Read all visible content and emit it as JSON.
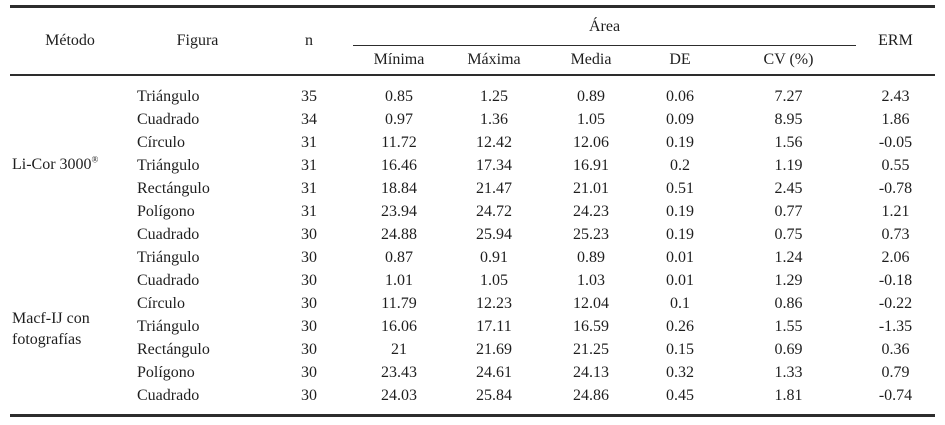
{
  "table": {
    "headers": {
      "metodo": "Método",
      "figura": "Figura",
      "n": "n",
      "area": "Área",
      "area_sub": [
        "Mínima",
        "Máxima",
        "Media",
        "DE",
        "CV (%)"
      ],
      "erm": "ERM"
    },
    "groups": [
      {
        "metodo": "Li-Cor 3000",
        "metodo_sup": "®",
        "rows": [
          {
            "figura": "Triángulo",
            "n": "35",
            "minima": "0.85",
            "maxima": "1.25",
            "media": "0.89",
            "de": "0.06",
            "cv": "7.27",
            "erm": "2.43"
          },
          {
            "figura": "Cuadrado",
            "n": "34",
            "minima": "0.97",
            "maxima": "1.36",
            "media": "1.05",
            "de": "0.09",
            "cv": "8.95",
            "erm": "1.86"
          },
          {
            "figura": "Círculo",
            "n": "31",
            "minima": "11.72",
            "maxima": "12.42",
            "media": "12.06",
            "de": "0.19",
            "cv": "1.56",
            "erm": "-0.05"
          },
          {
            "figura": "Triángulo",
            "n": "31",
            "minima": "16.46",
            "maxima": "17.34",
            "media": "16.91",
            "de": "0.2",
            "cv": "1.19",
            "erm": "0.55"
          },
          {
            "figura": "Rectángulo",
            "n": "31",
            "minima": "18.84",
            "maxima": "21.47",
            "media": "21.01",
            "de": "0.51",
            "cv": "2.45",
            "erm": "-0.78"
          },
          {
            "figura": "Polígono",
            "n": "31",
            "minima": "23.94",
            "maxima": "24.72",
            "media": "24.23",
            "de": "0.19",
            "cv": "0.77",
            "erm": "1.21"
          },
          {
            "figura": "Cuadrado",
            "n": "30",
            "minima": "24.88",
            "maxima": "25.94",
            "media": "25.23",
            "de": "0.19",
            "cv": "0.75",
            "erm": "0.73"
          }
        ]
      },
      {
        "metodo": "Macf-IJ con fotografías",
        "metodo_sup": "",
        "rows": [
          {
            "figura": "Triángulo",
            "n": "30",
            "minima": "0.87",
            "maxima": "0.91",
            "media": "0.89",
            "de": "0.01",
            "cv": "1.24",
            "erm": "2.06"
          },
          {
            "figura": "Cuadrado",
            "n": "30",
            "minima": "1.01",
            "maxima": "1.05",
            "media": "1.03",
            "de": "0.01",
            "cv": "1.29",
            "erm": "-0.18"
          },
          {
            "figura": "Círculo",
            "n": "30",
            "minima": "11.79",
            "maxima": "12.23",
            "media": "12.04",
            "de": "0.1",
            "cv": "0.86",
            "erm": "-0.22"
          },
          {
            "figura": "Triángulo",
            "n": "30",
            "minima": "16.06",
            "maxima": "17.11",
            "media": "16.59",
            "de": "0.26",
            "cv": "1.55",
            "erm": "-1.35"
          },
          {
            "figura": "Rectángulo",
            "n": "30",
            "minima": "21",
            "maxima": "21.69",
            "media": "21.25",
            "de": "0.15",
            "cv": "0.69",
            "erm": "0.36"
          },
          {
            "figura": "Polígono",
            "n": "30",
            "minima": "23.43",
            "maxima": "24.61",
            "media": "24.13",
            "de": "0.32",
            "cv": "1.33",
            "erm": "0.79"
          },
          {
            "figura": "Cuadrado",
            "n": "30",
            "minima": "24.03",
            "maxima": "25.84",
            "media": "24.86",
            "de": "0.45",
            "cv": "1.81",
            "erm": "-0.74"
          }
        ]
      }
    ]
  }
}
